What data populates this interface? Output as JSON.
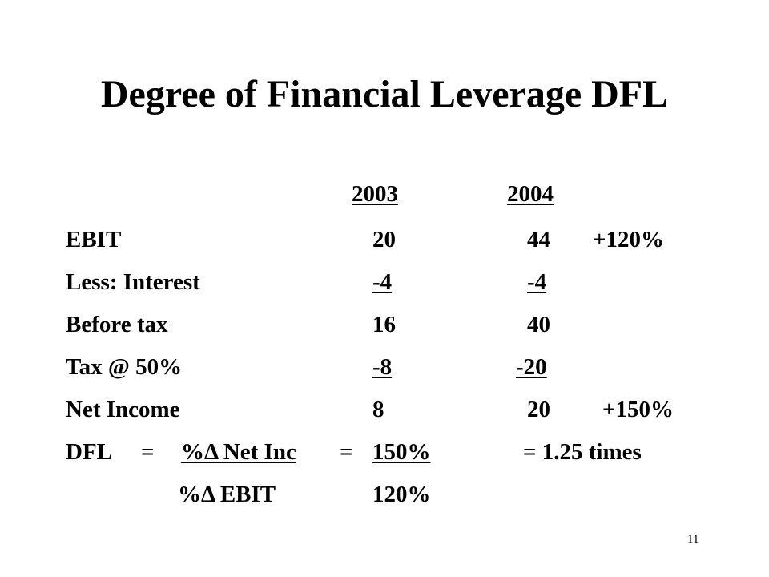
{
  "title": "Degree of Financial Leverage DFL",
  "years": [
    "2003",
    "2004"
  ],
  "rows": [
    {
      "label": "EBIT",
      "y2003": "20",
      "y2004": "44",
      "change": "+120%"
    },
    {
      "label": "Less: Interest",
      "y2003": "-4",
      "y2004": "-4"
    },
    {
      "label": "Before tax",
      "y2003": "16",
      "y2004": "40"
    },
    {
      "label": "Tax @ 50%",
      "y2003": "-8",
      "y2004": "-20"
    },
    {
      "label": "Net Income",
      "y2003": "8",
      "y2004": "20",
      "change": "+150%"
    }
  ],
  "dfl": {
    "label": "DFL",
    "eq1": "=",
    "numerator_label": "%Δ Net Inc",
    "eq2": "=",
    "numerator_value": "150%",
    "result": "= 1.25 times",
    "denominator_label": "%Δ EBIT",
    "denominator_value": "120%"
  },
  "page_number": "11"
}
